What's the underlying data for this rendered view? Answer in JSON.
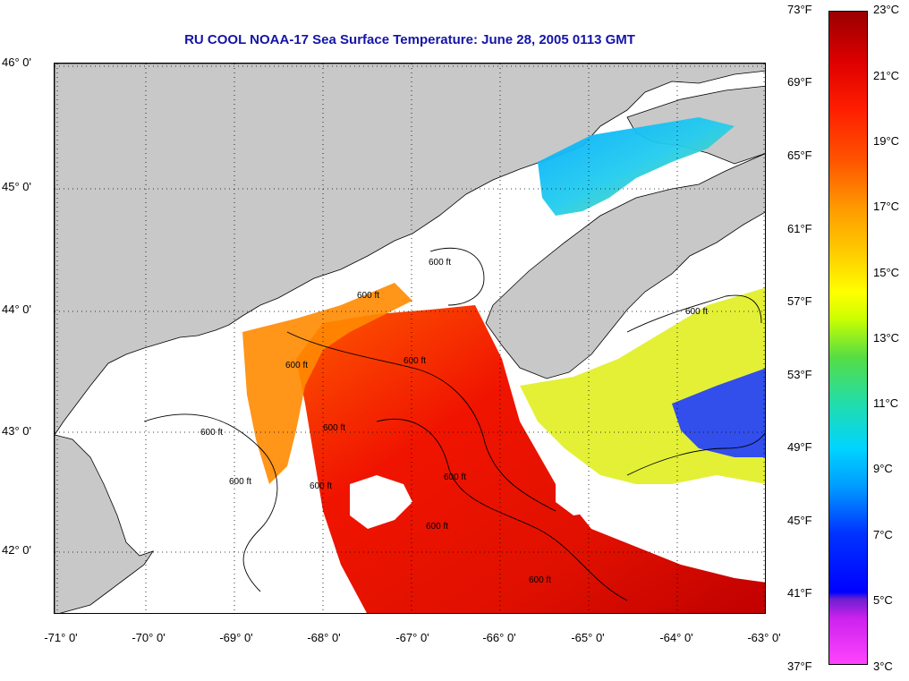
{
  "title": "RU COOL  NOAA-17  Sea Surface Temperature:  June 28, 2005 0113 GMT",
  "latitude_labels": [
    "46° 0'",
    "45° 0'",
    "44° 0'",
    "43° 0'",
    "42° 0'"
  ],
  "longitude_labels": [
    "-71° 0'",
    "-70° 0'",
    "-69° 0'",
    "-68° 0'",
    "-67° 0'",
    "-66° 0'",
    "-65° 0'",
    "-64° 0'",
    "-63° 0'"
  ],
  "contour_labels": [
    "600 ft",
    "600 ft",
    "600 ft",
    "600 ft",
    "600 ft",
    "600 ft",
    "600 ft",
    "600 ft",
    "600 ft",
    "600 ft",
    "600 ft",
    "600 ft"
  ],
  "colorbar": {
    "fahrenheit_labels": [
      "73°F",
      "69°F",
      "65°F",
      "61°F",
      "57°F",
      "53°F",
      "49°F",
      "45°F",
      "41°F",
      "37°F"
    ],
    "celsius_labels": [
      "23°C",
      "21°C",
      "19°C",
      "17°C",
      "15°C",
      "13°C",
      "11°C",
      "9°C",
      "7°C",
      "5°C",
      "3°C"
    ]
  },
  "colors": {
    "land": "#c8c8c8",
    "ocean_no_data": "#ffffff",
    "warm": "#ff1e00",
    "cool": "#00ccff",
    "title": "#1414a8"
  }
}
